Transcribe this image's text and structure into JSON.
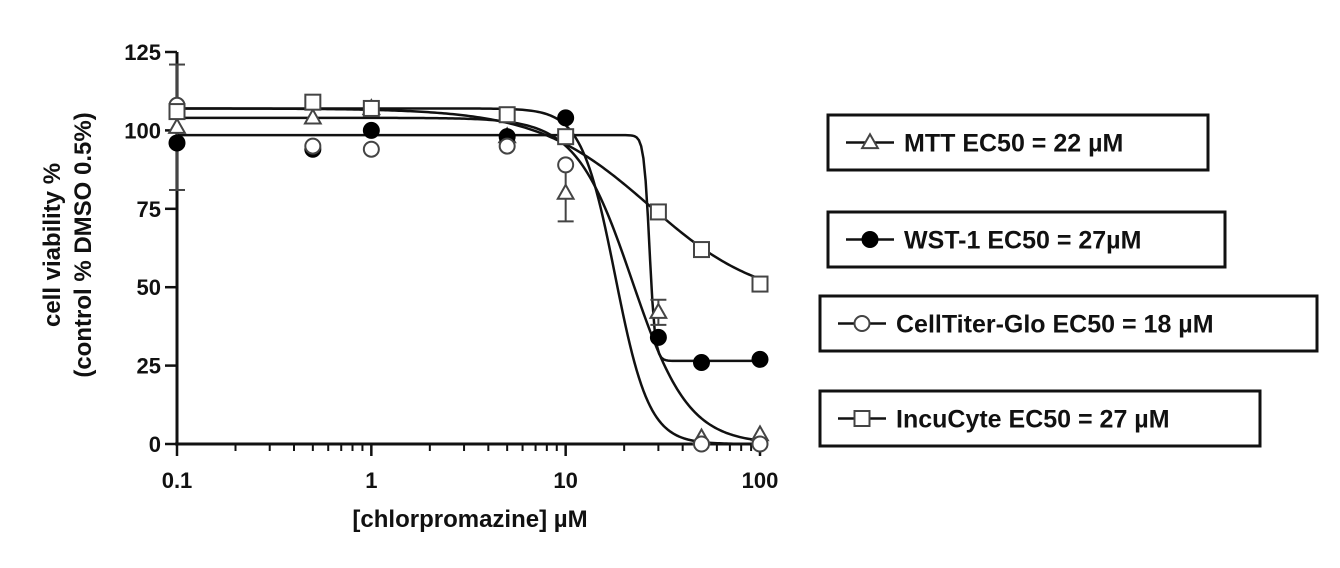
{
  "chart_data": {
    "type": "scatter",
    "title": "",
    "xlabel": "[chlorpromazine] µM",
    "ylabel_line1": "cell viability %",
    "ylabel_line2": "(control % DMSO 0.5%)",
    "xscale": "log",
    "xlim": [
      0.1,
      100
    ],
    "ylim": [
      0,
      125
    ],
    "x_ticks": [
      {
        "value": 0.1,
        "label": "0.1"
      },
      {
        "value": 1,
        "label": "1"
      },
      {
        "value": 10,
        "label": "10"
      },
      {
        "value": 100,
        "label": "100"
      }
    ],
    "y_ticks": [
      {
        "value": 0,
        "label": "0"
      },
      {
        "value": 25,
        "label": "25"
      },
      {
        "value": 50,
        "label": "50"
      },
      {
        "value": 75,
        "label": "75"
      },
      {
        "value": 100,
        "label": "100"
      },
      {
        "value": 125,
        "label": "125"
      }
    ],
    "grid": false,
    "legend_position": "right",
    "series": [
      {
        "name": "MTT EC50 = 22 µM",
        "marker": "triangle-open",
        "x": [
          0.1,
          0.5,
          1,
          5,
          10,
          30,
          50,
          100
        ],
        "y": [
          101,
          104,
          107,
          98,
          80,
          42,
          2,
          3
        ],
        "error": [
          20,
          0,
          0,
          0,
          9,
          4,
          0,
          0
        ],
        "fit": {
          "top": 104,
          "bottom": 0,
          "ec50": 22,
          "hill": 3
        }
      },
      {
        "name": "WST-1 EC50 = 27µM",
        "marker": "circle-filled",
        "x": [
          0.1,
          0.5,
          1,
          5,
          10,
          30,
          50,
          100
        ],
        "y": [
          96,
          94,
          100,
          98,
          104,
          34,
          26,
          27
        ],
        "error": [
          0,
          0,
          0,
          0,
          0,
          0,
          0,
          0
        ],
        "fit": {
          "top": 98.5,
          "bottom": 26.5,
          "ec50": 27,
          "hill": 30
        }
      },
      {
        "name": "CellTiter-Glo EC50 = 18 µM",
        "marker": "circle-open",
        "x": [
          0.1,
          0.5,
          1,
          5,
          10,
          50,
          100
        ],
        "y": [
          108,
          95,
          94,
          95,
          89,
          0,
          0
        ],
        "error": [
          0,
          0,
          0,
          0,
          0,
          0,
          0
        ],
        "fit": {
          "top": 107,
          "bottom": 0,
          "ec50": 18,
          "hill": 5
        }
      },
      {
        "name": "IncuCyte EC50 = 27 µM",
        "marker": "square-open",
        "x": [
          0.1,
          0.5,
          1,
          5,
          10,
          30,
          50,
          100
        ],
        "y": [
          106,
          109,
          107,
          105,
          98,
          74,
          62,
          51
        ],
        "error": [
          0,
          0,
          0,
          0,
          0,
          0,
          0,
          0
        ],
        "fit": {
          "top": 107,
          "bottom": 45,
          "ec50": 27,
          "hill": 1.5
        }
      }
    ]
  }
}
